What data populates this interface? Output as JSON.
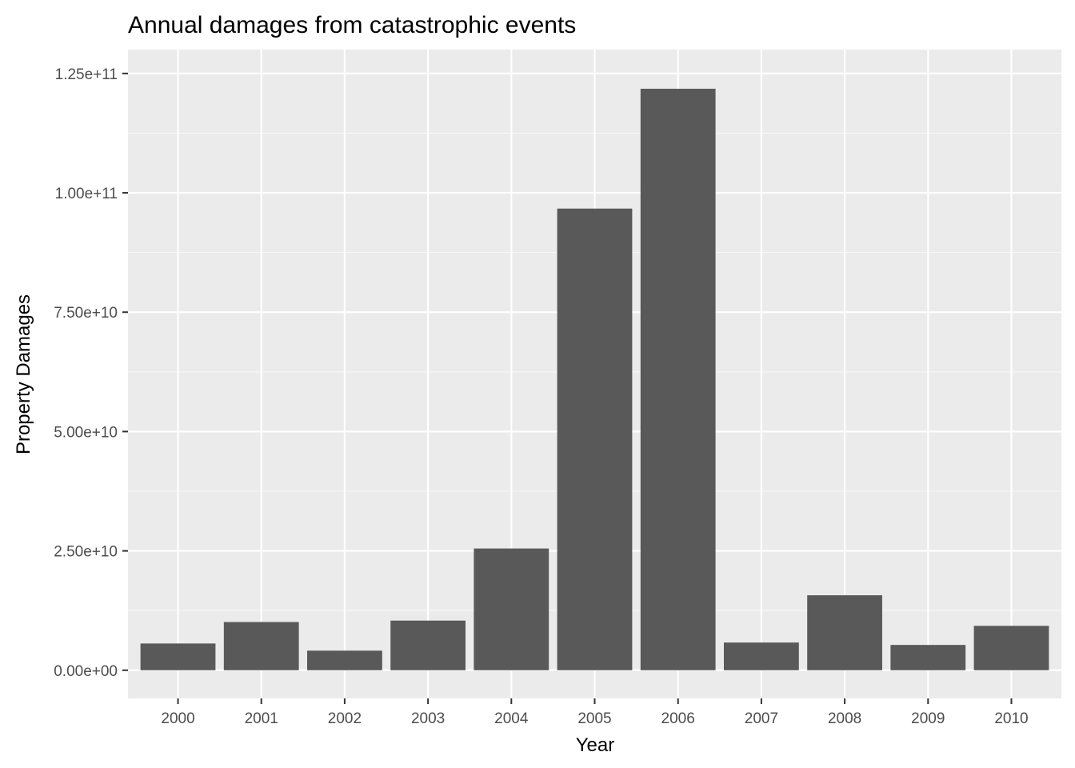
{
  "chart_data": {
    "type": "bar",
    "title": "Annual damages from catastrophic events",
    "xlabel": "Year",
    "ylabel": "Property Damages",
    "categories": [
      "2000",
      "2001",
      "2002",
      "2003",
      "2004",
      "2005",
      "2006",
      "2007",
      "2008",
      "2009",
      "2010"
    ],
    "values": [
      5600000000.0,
      10100000000.0,
      4100000000.0,
      10400000000.0,
      25500000000.0,
      96700000000.0,
      121800000000.0,
      5800000000.0,
      15700000000.0,
      5300000000.0,
      9300000000.0
    ],
    "ylim": [
      -5900000000.0,
      130000000000.0
    ],
    "yticks": [
      0,
      25000000000.0,
      50000000000.0,
      75000000000.0,
      100000000000.0,
      125000000000.0
    ],
    "ytick_labels": [
      "0.00e+00",
      "2.50e+10",
      "5.00e+10",
      "7.50e+10",
      "1.00e+11",
      "1.25e+11"
    ],
    "grid": true,
    "legend": "none",
    "colors": {
      "bar": "#595959",
      "panel": "#ebebeb",
      "grid_major": "#ffffff",
      "grid_minor": "#f7f7f7",
      "tick": "#333333",
      "tick_text": "#4d4d4d"
    }
  }
}
